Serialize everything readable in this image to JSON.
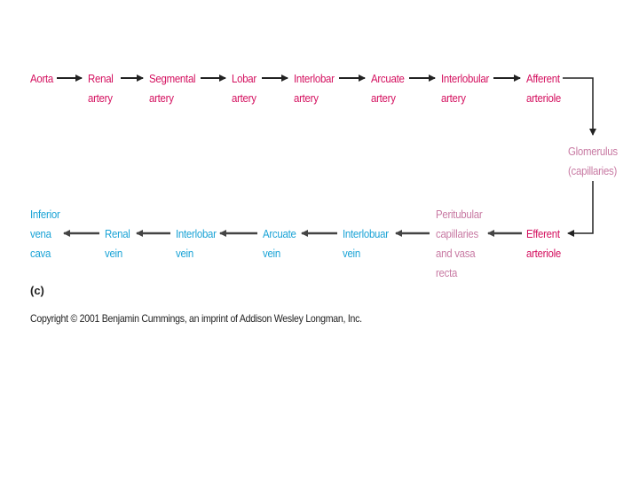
{
  "diagram": {
    "arterial_path": [
      {
        "id": "aorta",
        "label": "Aorta"
      },
      {
        "id": "renal-artery",
        "label": "Renal\nartery"
      },
      {
        "id": "segmental-artery",
        "label": "Segmental\nartery"
      },
      {
        "id": "lobar-artery",
        "label": "Lobar\nartery"
      },
      {
        "id": "interlobar-artery",
        "label": "Interlobar\nartery"
      },
      {
        "id": "arcuate-artery",
        "label": "Arcuate\nartery"
      },
      {
        "id": "interlobular-artery",
        "label": "Interlobular\nartery"
      },
      {
        "id": "afferent-arteriole",
        "label": "Afferent\narteriole"
      }
    ],
    "glomerulus": {
      "label": "Glomerulus\n(capillaries)"
    },
    "venous_path": [
      {
        "id": "efferent-arteriole",
        "label": "Efferent\narteriole"
      },
      {
        "id": "peritubular-capillaries",
        "label": "Peritubular\ncapillaries\nand vasa\nrecta"
      },
      {
        "id": "interlobular-vein",
        "label": "Interlobuar\nvein"
      },
      {
        "id": "arcuate-vein",
        "label": "Arcuate\nvein"
      },
      {
        "id": "interlobar-vein",
        "label": "Interlobar\nvein"
      },
      {
        "id": "renal-vein",
        "label": "Renal\nvein"
      },
      {
        "id": "inferior-vena-cava",
        "label": "Inferior\nvena\ncava"
      }
    ],
    "panel_label": "(c)",
    "copyright": "Copyright © 2001 Benjamin Cummings, an imprint of Addison Wesley Longman, Inc.",
    "colors": {
      "artery": "#d4105f",
      "capillary": "#c87aa3",
      "vein": "#1aa3d6",
      "arrow": "#222222"
    }
  }
}
